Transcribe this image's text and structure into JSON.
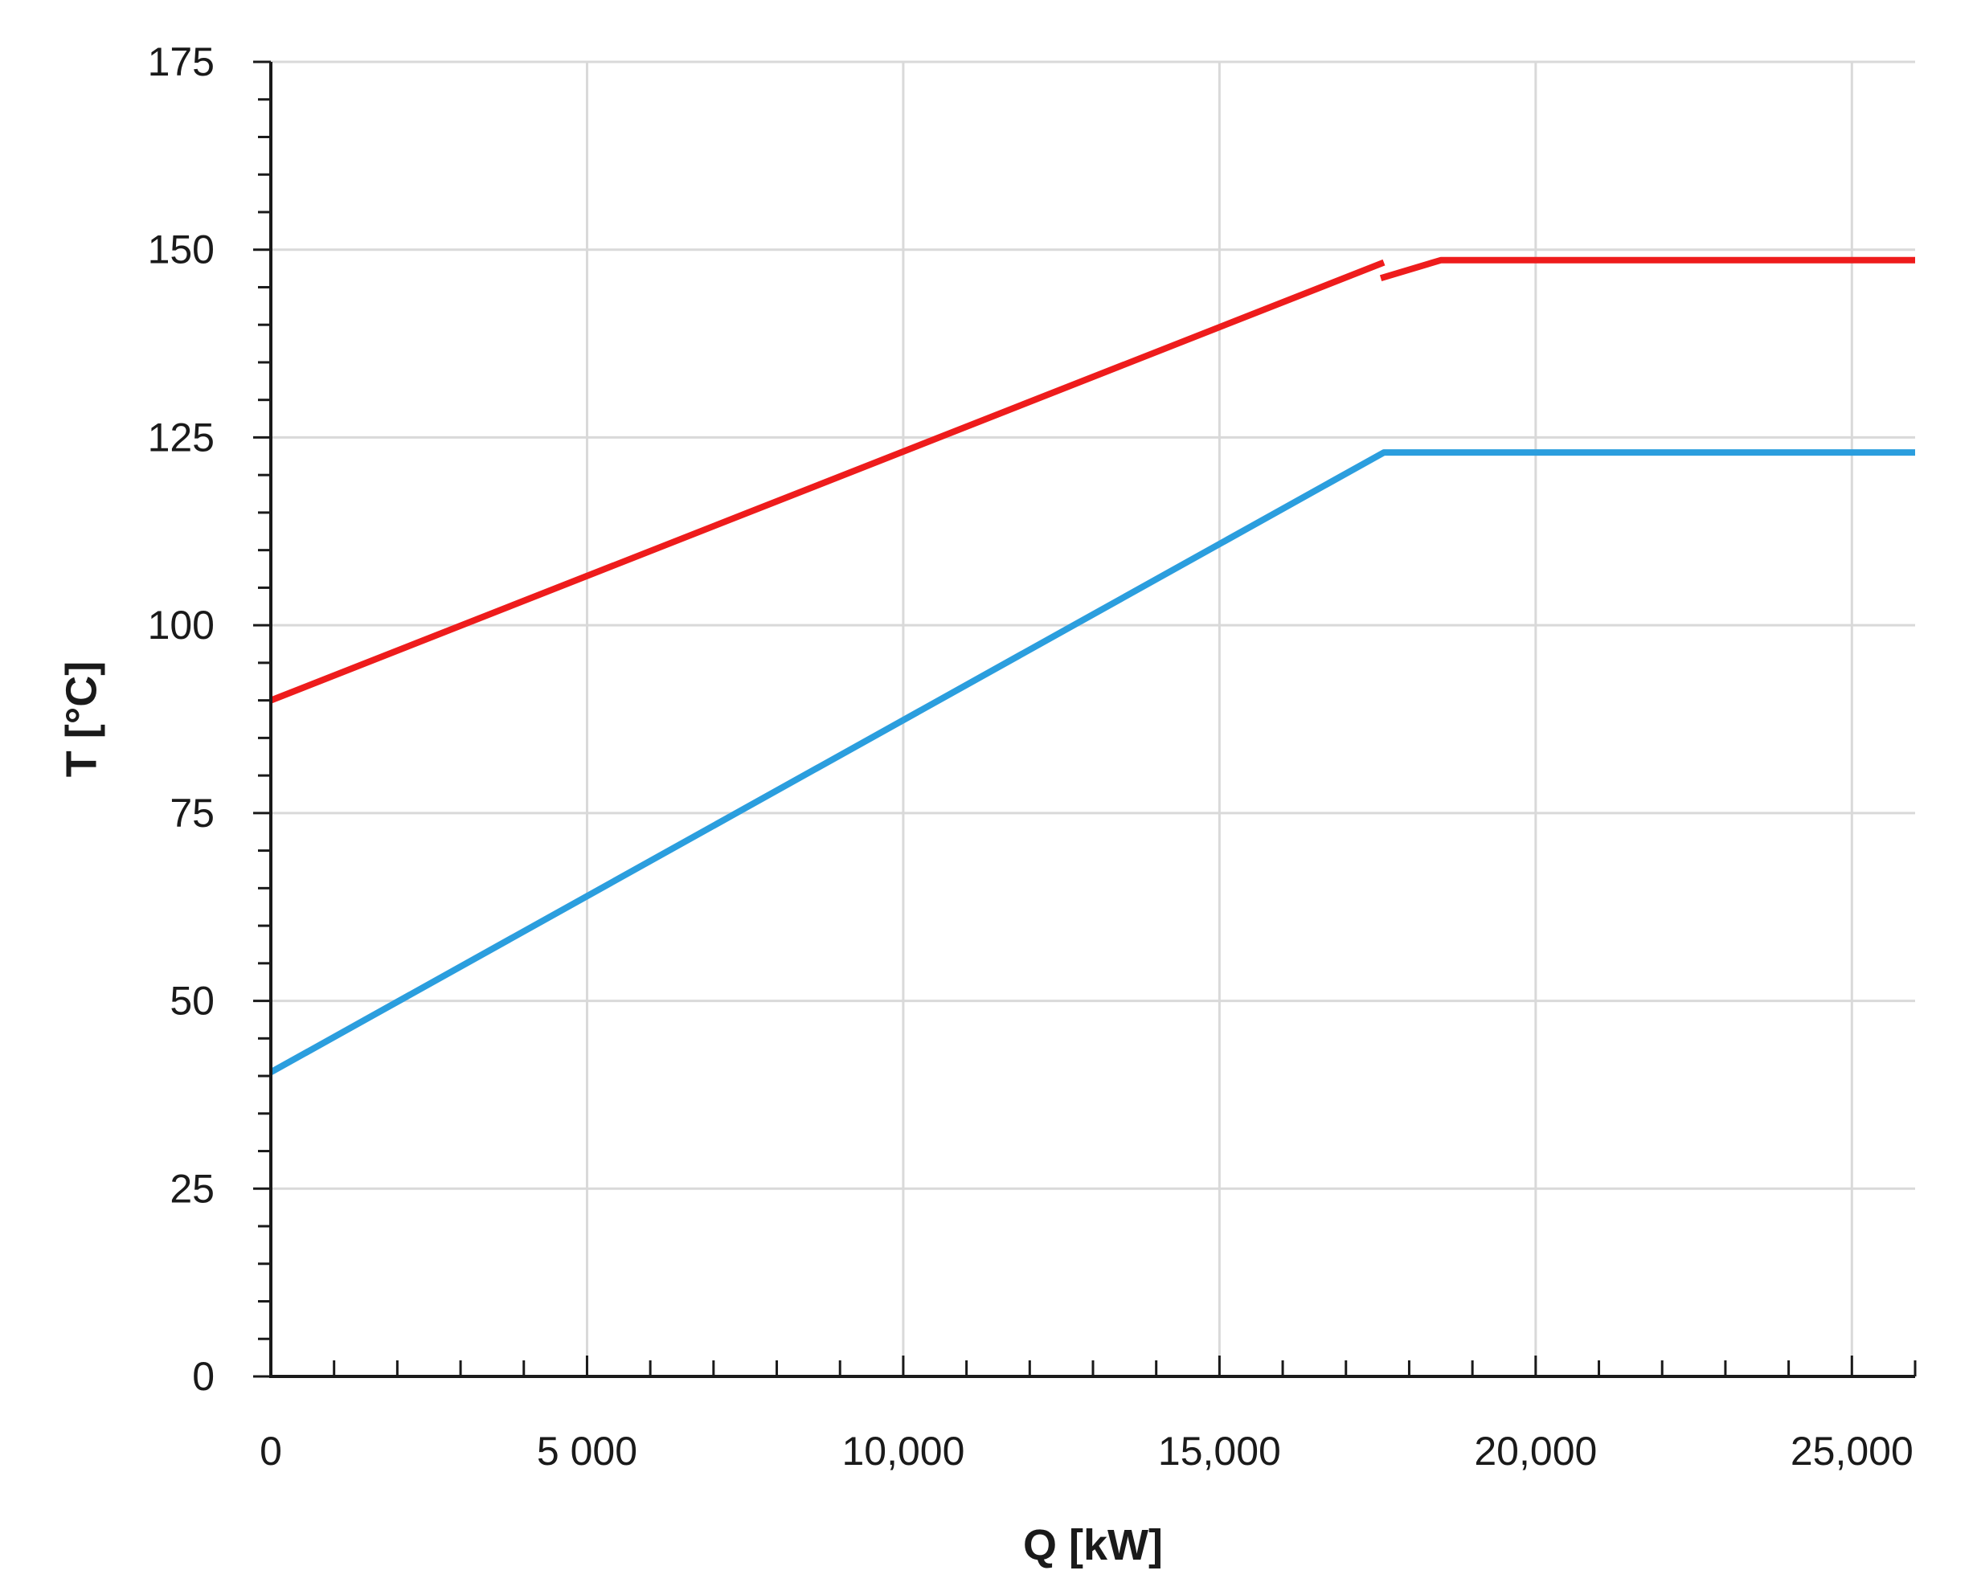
{
  "chart_data": {
    "type": "line",
    "title": "",
    "xlabel": "Q [kW]",
    "ylabel": "T [°C]",
    "xlim": [
      0,
      26000
    ],
    "ylim": [
      0,
      175
    ],
    "x_ticks": [
      0,
      5000,
      10000,
      15000,
      20000,
      25000
    ],
    "x_tick_labels": [
      "0",
      "5 000",
      "10,000",
      "15,000",
      "20,000",
      "25,000"
    ],
    "y_ticks": [
      0,
      25,
      50,
      75,
      100,
      125,
      150,
      175
    ],
    "y_tick_labels": [
      "0",
      "25",
      "50",
      "75",
      "100",
      "125",
      "150",
      "175"
    ],
    "x_minor_step": 1000,
    "y_minor_step": 5,
    "grid": true,
    "legend": "none",
    "series": [
      {
        "color": "#ee1c1c",
        "segments": [
          [
            [
              0,
              90
            ],
            [
              17600,
              148.3
            ]
          ],
          [
            [
              17550,
              146.2
            ],
            [
              18500,
              148.6
            ],
            [
              26000,
              148.6
            ]
          ]
        ]
      },
      {
        "color": "#2b9ede",
        "segments": [
          [
            [
              0,
              40.5
            ],
            [
              17600,
              123
            ],
            [
              26000,
              123
            ]
          ]
        ]
      }
    ]
  }
}
